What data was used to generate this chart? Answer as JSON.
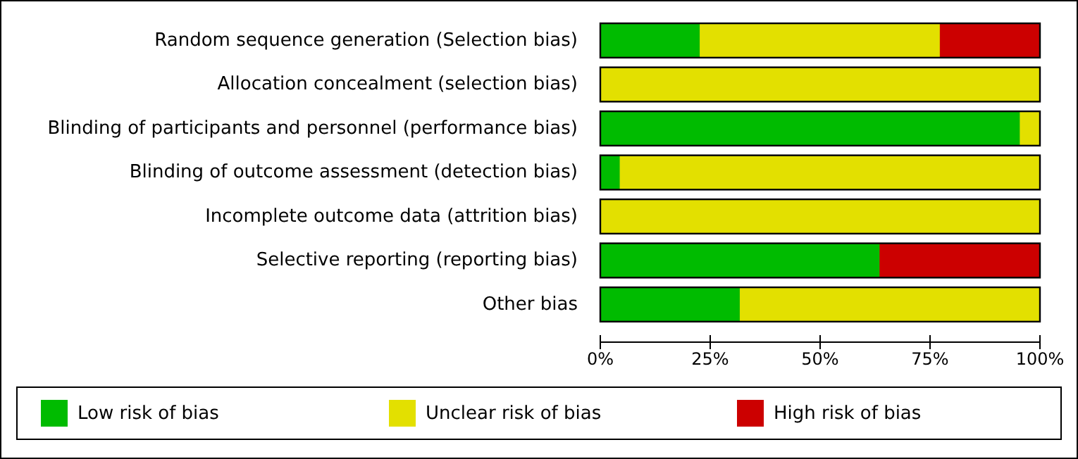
{
  "chart_data": {
    "type": "bar",
    "orientation": "horizontal",
    "stacked": true,
    "categories": [
      "Random sequence generation (Selection bias)",
      "Allocation concealment (selection bias)",
      "Blinding of participants and personnel (performance bias)",
      "Blinding of outcome assessment (detection bias)",
      "Incomplete outcome data (attrition bias)",
      "Selective reporting (reporting bias)",
      "Other bias"
    ],
    "series": [
      {
        "name": "Low risk of bias",
        "color": "#00bb00",
        "values": [
          22.7,
          0,
          95.5,
          4.5,
          0,
          63.6,
          31.8
        ]
      },
      {
        "name": "Unclear risk of bias",
        "color": "#e3e000",
        "values": [
          54.6,
          100,
          4.5,
          95.5,
          100,
          0,
          68.2
        ]
      },
      {
        "name": "High risk of bias",
        "color": "#cc0000",
        "values": [
          22.7,
          0,
          0,
          0,
          0,
          36.4,
          0
        ]
      }
    ],
    "xlim": [
      0,
      100
    ],
    "xticks": [
      {
        "value": 0,
        "label": "0%"
      },
      {
        "value": 25,
        "label": "25%"
      },
      {
        "value": 50,
        "label": "50%"
      },
      {
        "value": 75,
        "label": "75%"
      },
      {
        "value": 100,
        "label": "100%"
      }
    ],
    "grid": false,
    "legend": "bottom"
  }
}
